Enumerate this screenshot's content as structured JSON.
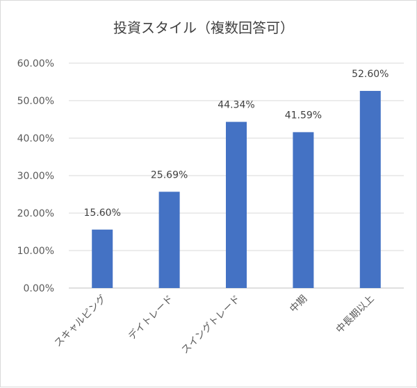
{
  "chart_data": {
    "type": "bar",
    "title": "投資スタイル（複数回答可）",
    "categories": [
      "スキャルピング",
      "デイトレード",
      "スイングトレード",
      "中期",
      "中長期以上"
    ],
    "values": [
      15.6,
      25.69,
      44.34,
      41.59,
      52.6
    ],
    "data_labels": [
      "15.60%",
      "25.69%",
      "44.34%",
      "41.59%",
      "52.60%"
    ],
    "y_ticks": [
      "0.00%",
      "10.00%",
      "20.00%",
      "30.00%",
      "40.00%",
      "50.00%",
      "60.00%"
    ],
    "ylim": [
      0,
      60
    ],
    "grid": true,
    "legend": "none",
    "bar_color": "#4472c4"
  }
}
